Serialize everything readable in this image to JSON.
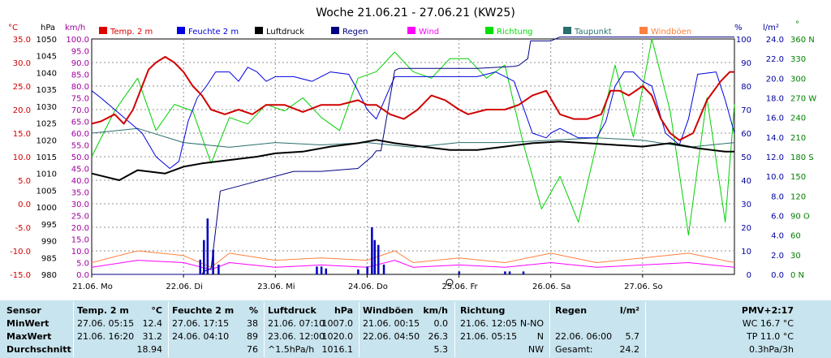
{
  "title": "Woche 21.06.21 - 27.06.21 (KW25)",
  "axis_units": {
    "temp": "°C",
    "press": "hPa",
    "wind": "km/h",
    "pct": "%",
    "rain": "l/m²",
    "dir": "°"
  },
  "legend": [
    {
      "label": "Temp. 2 m",
      "color": "#e00000"
    },
    {
      "label": "Feuchte  2 m",
      "color": "#0000e0"
    },
    {
      "label": "Luftdruck",
      "color": "#000000"
    },
    {
      "label": "Regen",
      "color": "#000080"
    },
    {
      "label": "Wind",
      "color": "#ff00ff"
    },
    {
      "label": "Richtung",
      "color": "#00e000"
    },
    {
      "label": "Taupunkt",
      "color": "#2a6e6e"
    },
    {
      "label": "Windböen",
      "color": "#ff8040"
    }
  ],
  "colors": {
    "temp": "#d00000",
    "press": "#0000a0",
    "wind": "#a000a0",
    "pct": "#0000a0",
    "rain": "#0000a0",
    "dir": "#008000",
    "grid": "#909090",
    "table_bg": "#c8e4ee"
  },
  "chart_data": {
    "type": "line",
    "title": "Woche 21.06.21 - 27.06.21 (KW25)",
    "x_ticks": [
      "21.06. Mo",
      "22.06. Di",
      "23.06. Mi",
      "24.06. Do",
      "25.06. Fr",
      "26.06. Sa",
      "27.06. So"
    ],
    "x_range_days": [
      0,
      7
    ],
    "axes": {
      "temp": {
        "label": "°C",
        "ticks": [
          "35.0",
          "30.0",
          "25.0",
          "20.0",
          "15.0",
          "10.0",
          "5.0",
          "0.0",
          "-5.0",
          "-10.0",
          "-15.0"
        ]
      },
      "press": {
        "label": "hPa",
        "ticks": [
          "1050",
          "1045",
          "1040",
          "1035",
          "1030",
          "1025",
          "1020",
          "1015",
          "1010",
          "1005",
          "1000",
          "995",
          "990",
          "985",
          "980"
        ]
      },
      "wind": {
        "label": "km/h",
        "ticks": [
          "100.0",
          "95.0",
          "90.0",
          "85.0",
          "80.0",
          "75.0",
          "70.0",
          "65.0",
          "60.0",
          "55.0",
          "50.0",
          "45.0",
          "40.0",
          "35.0",
          "30.0",
          "25.0",
          "20.0",
          "15.0",
          "10.0",
          "5.0",
          "0.0"
        ]
      },
      "pct": {
        "label": "%",
        "ticks": [
          "100",
          "90",
          "80",
          "70",
          "60",
          "50",
          "40",
          "30",
          "20",
          "10",
          "0"
        ]
      },
      "rain": {
        "label": "l/m²",
        "ticks": [
          "24.0",
          "22.0",
          "20.0",
          "18.0",
          "16.0",
          "14.0",
          "12.0",
          "10.0",
          "8.0",
          "6.0",
          "4.0",
          "2.0",
          "0.0"
        ]
      },
      "dir": {
        "label": "°",
        "ticks": [
          "360 N",
          "330",
          "300",
          "270 W",
          "240",
          "210",
          "180 S",
          "150",
          "120",
          "90 O",
          "60",
          "30",
          "0 N"
        ]
      }
    },
    "series": [
      {
        "name": "Temp. 2 m",
        "unit": "°C",
        "x": [
          0,
          0.1,
          0.25,
          0.35,
          0.45,
          0.55,
          0.62,
          0.7,
          0.8,
          0.9,
          1.0,
          1.1,
          1.2,
          1.3,
          1.45,
          1.6,
          1.75,
          1.9,
          2.1,
          2.3,
          2.5,
          2.7,
          2.9,
          3.0,
          3.1,
          3.25,
          3.4,
          3.55,
          3.7,
          3.85,
          4.0,
          4.1,
          4.3,
          4.5,
          4.65,
          4.8,
          4.95,
          5.1,
          5.25,
          5.4,
          5.55,
          5.65,
          5.75,
          5.85,
          6.0,
          6.1,
          6.2,
          6.3,
          6.4,
          6.55,
          6.7,
          6.85,
          6.95,
          7.0
        ],
        "y": [
          17,
          17.5,
          19,
          17,
          20,
          25,
          28.5,
          30,
          31.2,
          30,
          28,
          25,
          23,
          20,
          19,
          20,
          19,
          21,
          21,
          19.5,
          21,
          21,
          22,
          21,
          21,
          19,
          18,
          20,
          23,
          22,
          20,
          19,
          20,
          20,
          21,
          23,
          24,
          19,
          18,
          18,
          19,
          24,
          24,
          23,
          25,
          23,
          18,
          15,
          13.5,
          15,
          22,
          26,
          28,
          28
        ]
      },
      {
        "name": "Feuchte  2 m",
        "unit": "%",
        "x": [
          0,
          0.1,
          0.25,
          0.4,
          0.55,
          0.7,
          0.85,
          0.95,
          1.05,
          1.15,
          1.25,
          1.35,
          1.5,
          1.6,
          1.7,
          1.8,
          1.9,
          2.0,
          2.2,
          2.4,
          2.6,
          2.8,
          2.9,
          3.0,
          3.1,
          3.3,
          3.5,
          3.7,
          3.9,
          4.0,
          4.2,
          4.4,
          4.6,
          4.8,
          4.95,
          5.0,
          5.1,
          5.3,
          5.5,
          5.6,
          5.7,
          5.8,
          5.9,
          6.0,
          6.1,
          6.25,
          6.4,
          6.5,
          6.6,
          6.8,
          6.9,
          7.0
        ],
        "y": [
          78,
          75,
          70,
          65,
          60,
          50,
          45,
          48,
          65,
          75,
          80,
          86,
          86,
          82,
          88,
          86,
          82,
          84,
          84,
          82,
          86,
          85,
          78,
          70,
          66,
          84,
          84,
          84,
          84,
          84,
          84,
          86,
          82,
          60,
          58,
          60,
          62,
          58,
          58,
          65,
          80,
          86,
          86,
          82,
          80,
          60,
          55,
          66,
          85,
          86,
          74,
          60
        ]
      },
      {
        "name": "Luftdruck",
        "unit": "hPa",
        "x": [
          0,
          0.3,
          0.5,
          0.8,
          1.0,
          1.2,
          1.5,
          1.8,
          2.0,
          2.3,
          2.6,
          2.9,
          3.1,
          3.3,
          3.6,
          3.9,
          4.2,
          4.5,
          4.8,
          5.1,
          5.4,
          5.7,
          6.0,
          6.3,
          6.6,
          6.9,
          7.0
        ],
        "y": [
          1010,
          1008,
          1011,
          1010,
          1012,
          1013,
          1014,
          1015,
          1016,
          1016.5,
          1018,
          1019,
          1020,
          1019,
          1018,
          1017,
          1017,
          1018,
          1019,
          1019.5,
          1019,
          1018.5,
          1018,
          1019,
          1017.5,
          1016.5,
          1016.5
        ]
      },
      {
        "name": "Regen",
        "unit": "l/m²",
        "x": [
          0,
          1.2,
          1.22,
          1.3,
          1.4,
          1.6,
          2.2,
          2.3,
          2.45,
          2.5,
          2.9,
          3.05,
          3.1,
          3.15,
          3.3,
          3.35,
          3.6,
          3.65,
          4.15,
          4.2,
          4.6,
          4.65,
          4.75,
          4.78,
          5.0,
          5.1,
          6.0,
          7.0
        ],
        "y": [
          0,
          0,
          0.3,
          0.6,
          8.5,
          9.0,
          10.5,
          10.5,
          10.5,
          10.5,
          10.8,
          12.0,
          12.6,
          12.6,
          20.8,
          21.0,
          21.0,
          21.0,
          21.0,
          21.0,
          21.2,
          21.3,
          22.0,
          23.8,
          23.8,
          24.2,
          24.2,
          24.2
        ]
      },
      {
        "name": "Wind",
        "unit": "km/h",
        "x": [
          0,
          0.5,
          1.0,
          1.3,
          1.5,
          2.0,
          2.5,
          3.0,
          3.3,
          3.5,
          4.0,
          4.5,
          5.0,
          5.5,
          6.0,
          6.5,
          7.0
        ],
        "y": [
          3,
          6,
          5,
          2,
          5,
          3,
          4,
          3,
          6,
          3,
          4,
          3,
          5,
          3,
          4,
          5,
          3
        ]
      },
      {
        "name": "Richtung",
        "unit": "°",
        "x": [
          0,
          0.25,
          0.5,
          0.7,
          0.9,
          1.1,
          1.3,
          1.5,
          1.7,
          1.9,
          2.1,
          2.3,
          2.5,
          2.7,
          2.9,
          3.1,
          3.3,
          3.5,
          3.7,
          3.9,
          4.1,
          4.3,
          4.5,
          4.7,
          4.9,
          5.1,
          5.3,
          5.5,
          5.7,
          5.9,
          6.1,
          6.3,
          6.5,
          6.7,
          6.9,
          7.0
        ],
        "y": [
          180,
          250,
          300,
          220,
          260,
          250,
          170,
          240,
          230,
          260,
          250,
          270,
          240,
          220,
          300,
          310,
          340,
          310,
          300,
          330,
          330,
          300,
          320,
          200,
          100,
          150,
          80,
          200,
          320,
          210,
          360,
          250,
          60,
          270,
          80,
          260
        ]
      },
      {
        "name": "Taupunkt",
        "unit": "°C",
        "x": [
          0,
          0.5,
          1.0,
          1.5,
          2.0,
          2.5,
          3.0,
          3.5,
          4.0,
          4.5,
          5.0,
          5.5,
          6.0,
          6.5,
          7.0
        ],
        "y": [
          15,
          16,
          13,
          12,
          13,
          12.5,
          13,
          12,
          13,
          13,
          13.5,
          14,
          13.5,
          12,
          13
        ]
      },
      {
        "name": "Windböen",
        "unit": "km/h",
        "x": [
          0,
          0.5,
          1.0,
          1.3,
          1.5,
          2.0,
          2.5,
          3.0,
          3.3,
          3.5,
          4.0,
          4.5,
          5.0,
          5.5,
          6.0,
          6.5,
          7.0
        ],
        "y": [
          5,
          10,
          8,
          3,
          9,
          6,
          7,
          6,
          10,
          5,
          7,
          5,
          9,
          5,
          7,
          9,
          5
        ]
      }
    ],
    "rain_bars": {
      "x": [
        1.18,
        1.22,
        1.26,
        1.32,
        1.38,
        2.45,
        2.5,
        2.55,
        2.9,
        3.0,
        3.05,
        3.08,
        3.12,
        3.18,
        4.0,
        4.5,
        4.55,
        4.7
      ],
      "y": [
        1.5,
        3.5,
        5.7,
        2.5,
        1.0,
        0.8,
        0.8,
        0.6,
        0.5,
        0.8,
        4.8,
        3.5,
        3.0,
        1.0,
        0.3,
        0.3,
        0.3,
        0.3
      ]
    }
  },
  "table": {
    "rows": {
      "sensor": "Sensor",
      "min": "MinWert",
      "max": "MaxWert",
      "avg": "Durchschnitt"
    },
    "temp": {
      "title": "Temp. 2 m",
      "unit": "°C",
      "min_time": "27.06.  05:15",
      "min": "12.4",
      "max_time": "21.06.  16:20",
      "max": "31.2",
      "avg": "18.94"
    },
    "hum": {
      "title": "Feuchte  2 m",
      "unit": "%",
      "min_time": "27.06.  17:15",
      "min": "38",
      "max_time": "24.06.  04:10",
      "max": "89",
      "avg": "76"
    },
    "press": {
      "title": "Luftdruck",
      "unit": "hPa",
      "min_time": "21.06.  07:10",
      "min": "1007.0",
      "max_time": "23.06.  12:00",
      "max": "1020.0",
      "avg_label": "^1.5hPa/h",
      "avg": "1016.1"
    },
    "gust": {
      "title": "Windböen",
      "unit": "km/h",
      "min_time": "21.06.  00:15",
      "min": "0.0",
      "max_time": "22.06.  04:50",
      "max": "26.3",
      "avg": "5.3"
    },
    "dir": {
      "title": "Richtung",
      "min_time": "21.06.  12:05",
      "min": "N-NO",
      "max_time": "21.06.  05:15",
      "max": "N",
      "avg": "NW"
    },
    "rain": {
      "title": "Regen",
      "unit": "l/m²",
      "max_time": "22.06.  06:00",
      "max": "5.7",
      "avg_label": "Gesamt:",
      "avg": "24.2"
    },
    "pmv": {
      "title": "PMV+2:17",
      "l1": "WC 16.7 °C",
      "l2": "TP 11.0 °C",
      "l3": "0.3hPa/3h"
    }
  }
}
